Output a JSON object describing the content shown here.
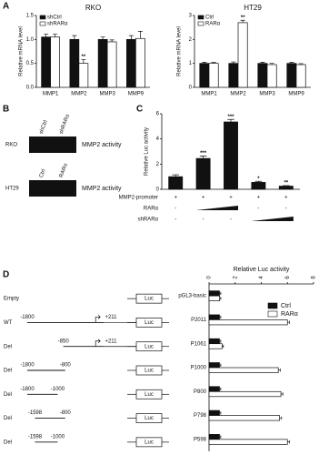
{
  "panel_labels": [
    "A",
    "B",
    "C",
    "D"
  ],
  "chart_data": [
    {
      "type": "bar",
      "title": "RKO",
      "y_label": "Relative mRNA level",
      "categories": [
        "MMP1",
        "MMP2",
        "MMP3",
        "MMP9"
      ],
      "series": [
        {
          "name": "shCtrl",
          "color": "#111111",
          "values": [
            1.05,
            1.0,
            1.0,
            1.0
          ],
          "errors": [
            0.06,
            0.08,
            0.05,
            0.08
          ],
          "significance": [
            null,
            null,
            null,
            null
          ]
        },
        {
          "name": "shRARα",
          "color": "#ffffff",
          "values": [
            1.05,
            0.5,
            0.95,
            1.02
          ],
          "errors": [
            0.06,
            0.08,
            0.04,
            0.15
          ],
          "significance": [
            null,
            "**",
            null,
            null
          ]
        }
      ],
      "ylim": [
        0,
        1.5
      ],
      "yticks": [
        {
          "value": 0,
          "label": "0.0"
        },
        {
          "value": 0.5,
          "label": "0.5"
        },
        {
          "value": 1,
          "label": "1.0"
        },
        {
          "value": 1.5,
          "label": "1.5"
        }
      ],
      "legend": "upper left"
    },
    {
      "type": "bar",
      "title": "HT29",
      "y_label": "Relative mRNA level",
      "categories": [
        "MMP1",
        "MMP2",
        "MMP3",
        "MMP9"
      ],
      "series": [
        {
          "name": "Ctrl",
          "color": "#111111",
          "values": [
            1.0,
            1.0,
            1.0,
            1.0
          ],
          "errors": [
            0.05,
            0.06,
            0.05,
            0.04
          ],
          "significance": [
            null,
            null,
            null,
            null
          ]
        },
        {
          "name": "RARα",
          "color": "#ffffff",
          "values": [
            1.0,
            2.7,
            0.95,
            0.95
          ],
          "errors": [
            0.04,
            0.1,
            0.05,
            0.04
          ],
          "significance": [
            null,
            "**",
            null,
            null
          ]
        }
      ],
      "ylim": [
        0,
        3
      ],
      "yticks": [
        0,
        1,
        2,
        3
      ],
      "legend": "upper left"
    },
    {
      "type": "bar",
      "y_label": "Relative Luc activity",
      "categories": [
        null,
        null,
        null,
        null,
        null
      ],
      "values": [
        1.0,
        2.45,
        5.35,
        0.55,
        0.25
      ],
      "errors": [
        0.15,
        0.2,
        0.2,
        0.08,
        0.04
      ],
      "significance": [
        null,
        "***",
        "***",
        "*",
        "**"
      ],
      "color": "#111111",
      "ylim": [
        0,
        6
      ],
      "yticks": [
        0,
        2,
        4,
        6
      ],
      "conditions": [
        {
          "label": "MMP2-promoter",
          "signs": [
            "+",
            "+",
            "+",
            "+",
            "+"
          ]
        },
        {
          "label": "RARα",
          "signs": [
            "-",
            null,
            null,
            "-",
            "-"
          ]
        },
        {
          "label": "shRARα",
          "signs": [
            "-",
            "-",
            "-",
            null,
            null
          ]
        }
      ]
    },
    {
      "type": "hbar",
      "title": "Relative Luc activity",
      "categories": [
        "pGL3-basic",
        "P2011",
        "P1061",
        "P1000",
        "P800",
        "P798",
        "P598"
      ],
      "series": [
        {
          "name": "Ctrl",
          "color": "#111111",
          "values": [
            0.8,
            0.8,
            0.8,
            0.8,
            0.8,
            0.8,
            0.8
          ],
          "errors": [
            0.1,
            0.1,
            0.1,
            0.1,
            0.1,
            0.1,
            0.1
          ]
        },
        {
          "name": "RARα",
          "color": "#ffffff",
          "values": [
            0.8,
            6.0,
            1.0,
            5.3,
            5.5,
            5.4,
            6.0
          ],
          "errors": [
            0.1,
            0.15,
            0.1,
            0.15,
            0.15,
            0.15,
            0.15
          ]
        }
      ],
      "xlim": [
        0,
        8
      ],
      "xticks": [
        0,
        2,
        4,
        6,
        8
      ],
      "legend": "upper right"
    }
  ],
  "panel_b": {
    "rows": [
      {
        "label": "RKO",
        "lanes": [
          "shCtrl",
          "shRARα"
        ],
        "assay": "MMP2 activity"
      },
      {
        "label": "HT29",
        "lanes": [
          "Ctrl",
          "RARα"
        ],
        "assay": "MMP2 activity"
      }
    ]
  },
  "panel_d": {
    "reporter": "Luc",
    "constructs": [
      {
        "label": "Empty"
      },
      {
        "label": "WT",
        "start": "-1800",
        "end": "+211"
      },
      {
        "label": "Del",
        "start": "-850",
        "end": "+211"
      },
      {
        "label": "Del",
        "start": "-1800",
        "end": "-800"
      },
      {
        "label": "Del",
        "start": "-1800",
        "end": "-1000"
      },
      {
        "label": "Del",
        "start": "-1598",
        "end": "-800"
      },
      {
        "label": "Del",
        "start": "-1598",
        "end": "-1000"
      }
    ]
  }
}
